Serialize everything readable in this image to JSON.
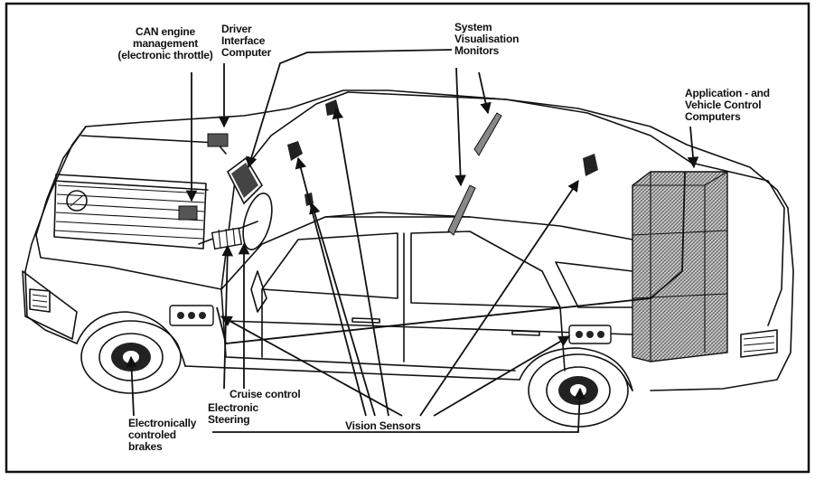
{
  "labels": {
    "can_engine": "CAN engine\nmanagement\n(electronic throttle)",
    "driver_interface": "Driver\nInterface\nComputer",
    "system_visualisation": "System\nVisualisation\nMonitors",
    "application_vehicle": "Application - and\nVehicle Control\nComputers",
    "cruise_control": "Cruise control",
    "electronic_steering": "Electronic\nSteering",
    "electronic_brakes": "Electronically\ncontroled\nbrakes",
    "vision_sensors": "Vision Sensors"
  },
  "colors": {
    "ink": "#111111",
    "hatch": "#8a8a8a",
    "background": "#ffffff"
  }
}
